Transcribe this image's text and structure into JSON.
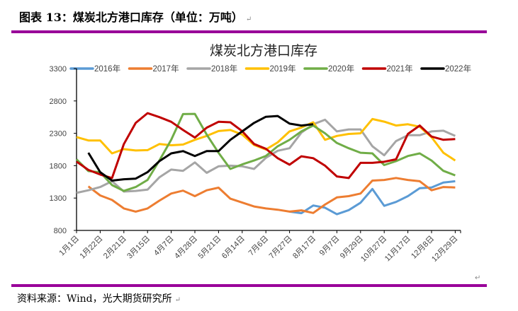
{
  "figure": {
    "title": "图表 13：煤炭北方港口库存（单位：万吨）",
    "paragraph_mark": "↵",
    "source": "资料来源：Wind，光大期货研究所",
    "accent_color": "#990099"
  },
  "chart_data": {
    "type": "line",
    "title": "煤炭北方港口库存",
    "xlabel": "",
    "ylabel": "",
    "ylim": [
      800,
      3300
    ],
    "yticks": [
      800,
      1300,
      1800,
      2300,
      2800,
      3300
    ],
    "ytick_labels": [
      "800",
      "1300",
      "1800",
      "2300",
      "2800",
      "3300"
    ],
    "xtick_labels": [
      "1月1日",
      "1月22日",
      "2月21日",
      "3月15日",
      "4月7日",
      "4月28日",
      "5月21日",
      "6月14日",
      "7月6日",
      "7月27日",
      "8月17日",
      "9月7日",
      "9月29日",
      "10月27日",
      "11月17日",
      "12月8日",
      "12月29日"
    ],
    "x": [
      "1/1",
      "1/11",
      "1/22",
      "2/6",
      "2/21",
      "3/4",
      "3/15",
      "3/26",
      "4/7",
      "4/17",
      "4/28",
      "5/9",
      "5/21",
      "6/2",
      "6/14",
      "6/25",
      "7/6",
      "7/16",
      "7/27",
      "8/6",
      "8/17",
      "8/27",
      "9/7",
      "9/18",
      "9/29",
      "10/13",
      "10/27",
      "11/6",
      "11/17",
      "11/27",
      "12/8",
      "12/18",
      "12/29"
    ],
    "grid": false,
    "legend_position": "top",
    "series": [
      {
        "name": "2016年",
        "color": "#5B9BD5",
        "values": [
          null,
          null,
          null,
          null,
          null,
          null,
          null,
          null,
          null,
          null,
          null,
          null,
          null,
          null,
          null,
          null,
          null,
          null,
          1090,
          1066,
          1185,
          1150,
          1050,
          1113,
          1228,
          1440,
          1180,
          1240,
          1330,
          1453,
          1464,
          1540,
          1560
        ]
      },
      {
        "name": "2017年",
        "color": "#ED7D31",
        "values": [
          null,
          1480,
          1340,
          1270,
          1140,
          1090,
          1140,
          1260,
          1370,
          1415,
          1330,
          1420,
          1460,
          1290,
          1230,
          1170,
          1140,
          1120,
          1090,
          1110,
          1070,
          1200,
          1310,
          1330,
          1370,
          1570,
          1580,
          1610,
          1580,
          1560,
          1420,
          1470,
          1464
        ]
      },
      {
        "name": "2018年",
        "color": "#A5A5A5",
        "values": [
          1380,
          1420,
          1470,
          1560,
          1400,
          1410,
          1430,
          1620,
          1740,
          1720,
          1850,
          1690,
          1790,
          1800,
          1790,
          1750,
          1920,
          2030,
          2070,
          2310,
          2440,
          2510,
          2330,
          2360,
          2360,
          2100,
          1960,
          2180,
          2270,
          2270,
          2330,
          2340,
          2260
        ]
      },
      {
        "name": "2019年",
        "color": "#FFC000",
        "values": [
          2242,
          2190,
          2190,
          1990,
          2055,
          2035,
          2040,
          2134,
          2116,
          2126,
          2200,
          2260,
          2335,
          2351,
          2280,
          2120,
          2050,
          2160,
          2330,
          2390,
          2470,
          2200,
          2260,
          2290,
          2300,
          2520,
          2480,
          2420,
          2440,
          2400,
          2240,
          2000,
          1880
        ]
      },
      {
        "name": "2020年",
        "color": "#70AD47",
        "values": [
          1898,
          1717,
          1699,
          1500,
          1410,
          1470,
          1580,
          1880,
          2200,
          2597,
          2600,
          2280,
          2000,
          1750,
          1820,
          1880,
          1950,
          2100,
          2200,
          2330,
          2420,
          2300,
          2150,
          2070,
          2000,
          1990,
          1810,
          1870,
          1950,
          1990,
          1880,
          1720,
          1650
        ]
      },
      {
        "name": "2021年",
        "color": "#C00000",
        "values": [
          1862,
          1735,
          1663,
          1609,
          2134,
          2460,
          2611,
          2550,
          2478,
          2351,
          2235,
          2387,
          2478,
          2470,
          2333,
          2135,
          2061,
          1916,
          1815,
          1945,
          1916,
          1800,
          1634,
          1609,
          1844,
          1844,
          1860,
          1898,
          2290,
          2420,
          2250,
          2200,
          2210
        ]
      },
      {
        "name": "2022年",
        "color": "#000000",
        "values": [
          null,
          2000,
          1700,
          1570,
          1590,
          1600,
          1700,
          1870,
          1990,
          2025,
          1950,
          2025,
          2025,
          2200,
          2330,
          2460,
          2555,
          2568,
          2450,
          2420,
          2441,
          null,
          null,
          null,
          null,
          null,
          null,
          null,
          null,
          null,
          null,
          null,
          null
        ]
      }
    ]
  }
}
